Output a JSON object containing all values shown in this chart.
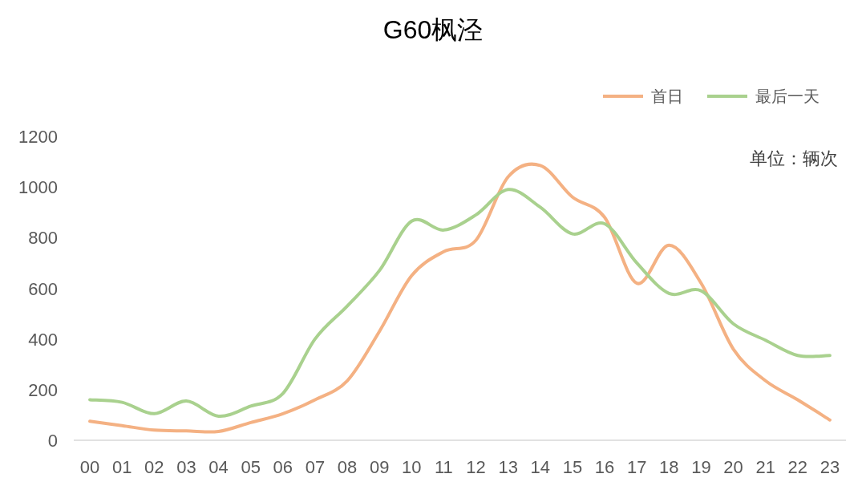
{
  "chart_data": {
    "type": "line",
    "title": "G60枫泾",
    "categories": [
      "00",
      "01",
      "02",
      "03",
      "04",
      "05",
      "06",
      "07",
      "08",
      "09",
      "10",
      "11",
      "12",
      "13",
      "14",
      "15",
      "16",
      "17",
      "18",
      "19",
      "20",
      "21",
      "22",
      "23"
    ],
    "series": [
      {
        "name": "首日",
        "color": "#f4b183",
        "values": [
          75,
          58,
          40,
          37,
          35,
          70,
          105,
          160,
          235,
          430,
          650,
          745,
          790,
          1040,
          1085,
          960,
          880,
          620,
          770,
          620,
          360,
          235,
          160,
          80
        ]
      },
      {
        "name": "最后一天",
        "color": "#a9d18e",
        "values": [
          160,
          150,
          105,
          155,
          95,
          135,
          185,
          400,
          530,
          670,
          865,
          830,
          890,
          990,
          920,
          815,
          855,
          700,
          580,
          590,
          460,
          395,
          335,
          335
        ]
      }
    ],
    "ylim": [
      0,
      1200
    ],
    "yticks": [
      0,
      200,
      400,
      600,
      800,
      1000,
      1200
    ],
    "grid": false,
    "legend": "top right",
    "marker": "none",
    "line_style": "solid",
    "annotations": [
      "单位：辆次"
    ]
  }
}
